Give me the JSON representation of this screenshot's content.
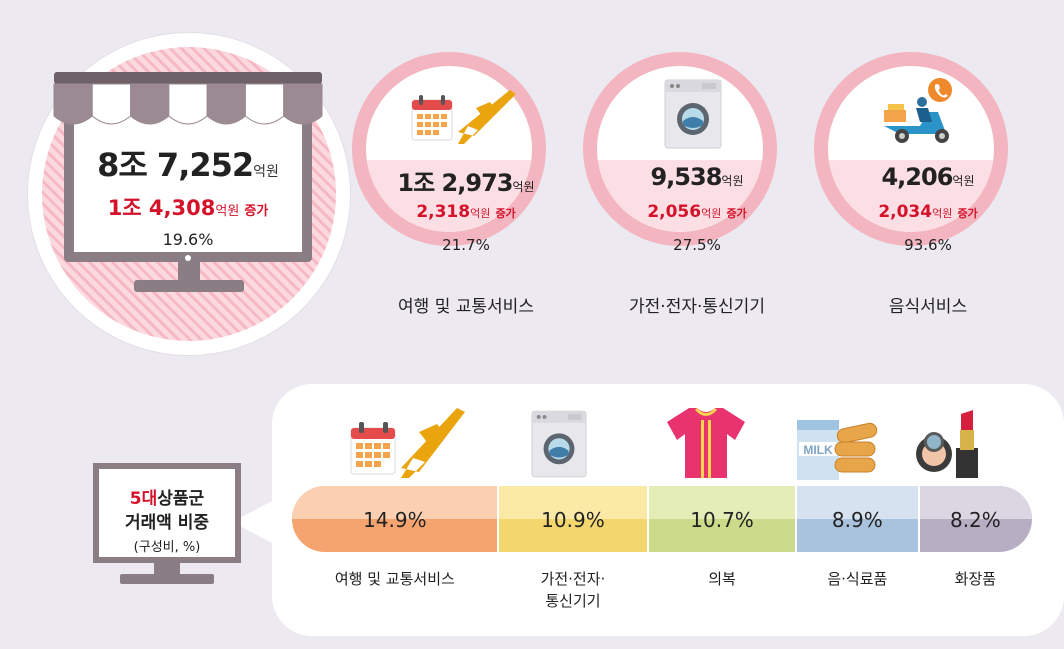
{
  "summary": {
    "total": {
      "number": "8조 7,252",
      "unit": "억원"
    },
    "increase": {
      "number": "1조 4,308",
      "unit": "억원",
      "suffix": "증가"
    },
    "rate": "19.6%"
  },
  "top_categories": [
    {
      "label": "여행 및 교통서비스",
      "total": "1조 2,973",
      "total_unit": "억원",
      "increase": "2,318",
      "increase_unit": "억원",
      "increase_suffix": "증가",
      "rate": "21.7%",
      "icon": "calendar-plane-icon"
    },
    {
      "label": "가전·전자·통신기기",
      "total": "9,538",
      "total_unit": "억원",
      "increase": "2,056",
      "increase_unit": "억원",
      "increase_suffix": "증가",
      "rate": "27.5%",
      "icon": "washing-machine-icon"
    },
    {
      "label": "음식서비스",
      "total": "4,206",
      "total_unit": "억원",
      "increase": "2,034",
      "increase_unit": "억원",
      "increase_suffix": "증가",
      "rate": "93.6%",
      "icon": "delivery-scooter-icon"
    }
  ],
  "legend": {
    "line1_red": "5대",
    "line1_rest": "상품군",
    "line2": "거래액 비중",
    "line3": "(구성비, %)"
  },
  "chart_data": {
    "type": "bar",
    "title": "5대상품군 거래액 비중",
    "unit": "(구성비, %)",
    "categories": [
      "여행 및 교통서비스",
      "가전·전자·통신기기",
      "의복",
      "음·식료품",
      "화장품"
    ],
    "display_labels": [
      "여행 및 교통서비스",
      "가전·전자·\n통신기기",
      "의복",
      "음·식료품",
      "화장품"
    ],
    "values": [
      14.9,
      10.9,
      10.7,
      8.9,
      8.2
    ],
    "value_labels": [
      "14.9%",
      "10.9%",
      "10.7%",
      "8.9%",
      "8.2%"
    ],
    "colors": [
      {
        "top": "#fbd0b0",
        "bottom": "#f5a46f"
      },
      {
        "top": "#fbeaa6",
        "bottom": "#f3d76e"
      },
      {
        "top": "#e4ecb8",
        "bottom": "#cadb8a"
      },
      {
        "top": "#d6e2ef",
        "bottom": "#a9c3de"
      },
      {
        "top": "#dcd6e2",
        "bottom": "#b8aec4"
      }
    ],
    "icons": [
      "calendar-plane-icon",
      "washing-machine-icon",
      "tshirt-icon",
      "milk-bread-icon",
      "cosmetics-icon"
    ]
  },
  "colors": {
    "accent_red": "#d4122a",
    "ring_pink": "#f3b5bf",
    "monitor_gray": "#8b7d84"
  }
}
